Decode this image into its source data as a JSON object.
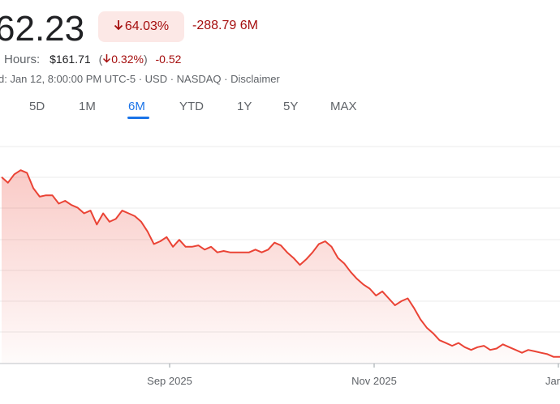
{
  "quote": {
    "price": "62.23",
    "change_pct": "64.03%",
    "change_abs": "-288.79 6M",
    "colors": {
      "negative": "#a50e0e",
      "negative_bg": "#fce8e6",
      "accent": "#1a73e8",
      "line": "#ea4335"
    }
  },
  "after_hours": {
    "label": "Hours:",
    "price": "$161.71",
    "open_paren": "(",
    "pct": "0.32%",
    "close_paren": ")",
    "abs": "-0.52"
  },
  "meta": {
    "text": "d: Jan 12, 8:00:00 PM UTC-5 · USD · NASDAQ · Disclaimer"
  },
  "icons": {
    "down_arrow": "arrow-down-icon"
  },
  "range_tabs": [
    "5D",
    "1M",
    "6M",
    "YTD",
    "1Y",
    "5Y",
    "MAX"
  ],
  "active_tab": "6M",
  "chart_data": {
    "type": "area",
    "x_tick_labels": [
      "Sep 2025",
      "Nov 2025",
      "Jan"
    ],
    "grid": true,
    "values": [
      372,
      368,
      374,
      377,
      375,
      364,
      358,
      359,
      359,
      353,
      355,
      352,
      350,
      346,
      348,
      338,
      346,
      340,
      342,
      348,
      346,
      344,
      340,
      333,
      324,
      326,
      329,
      322,
      327,
      322,
      322,
      323,
      320,
      322,
      318,
      319,
      318,
      318,
      318,
      318,
      320,
      318,
      320,
      325,
      323,
      318,
      314,
      309,
      313,
      318,
      324,
      326,
      322,
      314,
      310,
      304,
      299,
      295,
      292,
      287,
      290,
      285,
      280,
      283,
      285,
      278,
      270,
      264,
      260,
      255,
      253,
      251,
      253,
      250,
      248,
      250,
      251,
      248,
      249,
      252,
      250,
      248,
      246,
      248,
      247,
      246,
      245,
      243,
      243
    ]
  }
}
